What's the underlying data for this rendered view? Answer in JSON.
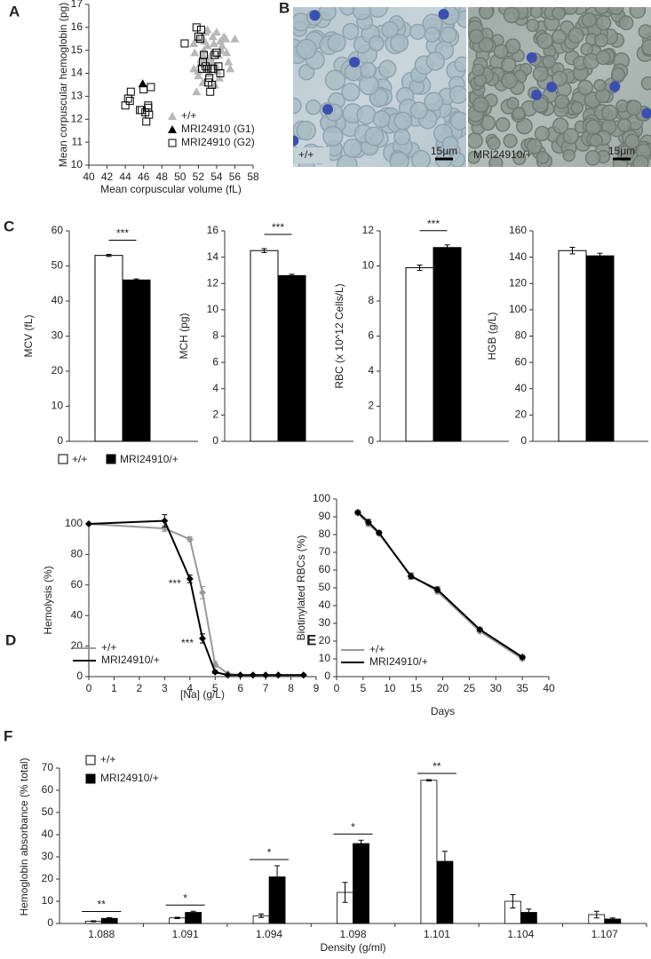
{
  "chart_data": [
    {
      "panel": "A",
      "type": "scatter",
      "xlabel": "Mean corpuscular volume (fL)",
      "ylabel": "Mean corpuscular hemoglobin (pg)",
      "xlim": [
        40,
        58
      ],
      "xticks": [
        40,
        42,
        44,
        46,
        48,
        50,
        52,
        54,
        56,
        58
      ],
      "ylim": [
        10,
        17
      ],
      "yticks": [
        10,
        11,
        12,
        13,
        14,
        15,
        16,
        17
      ],
      "legend": "lower right",
      "series": [
        {
          "name": "+/+",
          "color": "#b8b8b8",
          "marker": "triangle",
          "x": [
            51.5,
            52,
            52.5,
            53,
            53.5,
            54,
            54.5,
            55,
            55.5,
            56,
            51.8,
            52.3,
            52.8,
            53.2,
            53.7,
            54.2,
            54.8,
            55.3,
            52,
            52.6,
            53.1,
            53.6,
            54.1,
            54.6,
            55.1,
            51.6,
            52.2,
            52.7,
            53.3,
            53.8,
            54.4,
            52.5,
            53,
            53.5,
            54,
            51.5,
            52,
            52.8,
            53.4,
            54.3
          ],
          "y": [
            14.2,
            15.5,
            14.8,
            15.2,
            14.5,
            15.8,
            15,
            15.5,
            14.2,
            15.5,
            13.2,
            14.6,
            15.8,
            14,
            15.3,
            14.8,
            15.6,
            14.5,
            13.9,
            15,
            14.3,
            15.6,
            14.1,
            15.2,
            14.9,
            14.9,
            14.4,
            15.4,
            14.7,
            13.5,
            15.4,
            13.6,
            15.9,
            14.9,
            14.3,
            15.3,
            14.1,
            14.6,
            14.4,
            13.8
          ]
        },
        {
          "name": "MRI24910 (G1)",
          "color": "#000000",
          "marker": "triangle",
          "x": [
            45.9
          ],
          "y": [
            13.55
          ]
        },
        {
          "name": "MRI24910 (G2)",
          "color": "#000000",
          "marker": "open-square",
          "x": [
            44,
            44.3,
            44.6,
            45.6,
            45.8,
            46,
            46.2,
            46.3,
            46.5,
            46.6,
            46.8,
            46.5,
            44.5,
            50.5,
            51.8,
            52,
            52.2,
            52.4,
            52.6,
            52.8,
            53,
            53.1,
            53.3,
            53.5,
            53.6,
            53.8,
            54,
            54.2,
            54.4,
            52.5,
            53.2,
            52.3,
            53.4
          ],
          "y": [
            12.6,
            12.9,
            13.2,
            12.4,
            12.4,
            13.3,
            12.3,
            11.9,
            12.6,
            12.2,
            13.4,
            12.5,
            12.8,
            15.3,
            16,
            15.6,
            15.5,
            14.2,
            14.8,
            14.3,
            14.2,
            13.6,
            13.2,
            13.5,
            14.2,
            14.8,
            14.9,
            14.3,
            14,
            14.5,
            13.8,
            15.9,
            14.2
          ]
        }
      ]
    },
    {
      "panel": "C",
      "type": "bar-panels",
      "series": [
        {
          "name": "+/+",
          "color": "#ffffff"
        },
        {
          "name": "MRI24910/+",
          "color": "#000000"
        }
      ],
      "subplots": [
        {
          "ylabel": "MCV (fL)",
          "ylim": [
            0,
            60
          ],
          "yticks": [
            0,
            10,
            20,
            30,
            40,
            50,
            60
          ],
          "values": [
            53,
            46
          ],
          "errors": [
            0.3,
            0.3
          ],
          "annotation": "***"
        },
        {
          "ylabel": "MCH (pg)",
          "ylim": [
            0,
            16
          ],
          "yticks": [
            0,
            2,
            4,
            6,
            8,
            10,
            12,
            14,
            16
          ],
          "values": [
            14.5,
            12.6
          ],
          "errors": [
            0.15,
            0.1
          ],
          "annotation": "***"
        },
        {
          "ylabel": "RBC (x 10^12 Cells/L)",
          "ylim": [
            0,
            12
          ],
          "yticks": [
            0,
            2,
            4,
            6,
            8,
            10,
            12
          ],
          "values": [
            9.9,
            11.05
          ],
          "errors": [
            0.15,
            0.15
          ],
          "annotation": "***"
        },
        {
          "ylabel": "HGB (g/L)",
          "ylim": [
            0,
            160
          ],
          "yticks": [
            0,
            20,
            40,
            60,
            80,
            100,
            120,
            140,
            160
          ],
          "values": [
            145,
            141
          ],
          "errors": [
            2.5,
            2
          ]
        }
      ]
    },
    {
      "panel": "D",
      "type": "line",
      "xlabel": "[Na] (g/L)",
      "ylabel": "Hemolysis (%)",
      "xlim": [
        0,
        9
      ],
      "xticks": [
        0,
        1,
        2,
        3,
        4,
        5,
        6,
        7,
        8,
        9
      ],
      "ylim": [
        0,
        100
      ],
      "yticks": [
        0,
        20,
        40,
        60,
        80,
        100
      ],
      "legend": "lower left",
      "x": [
        0,
        3,
        4,
        4.5,
        5,
        5.5,
        6,
        6.5,
        7,
        7.5,
        8.5
      ],
      "series": [
        {
          "name": "+/+",
          "color": "#999999",
          "values": [
            100,
            97,
            90,
            55,
            8,
            2,
            1,
            1,
            1,
            1,
            1
          ],
          "errors": [
            0.5,
            2,
            1.5,
            4,
            2,
            0.5,
            0.3,
            0.3,
            0.3,
            0.3,
            0.3
          ]
        },
        {
          "name": "MRI24910/+",
          "color": "#000000",
          "values": [
            100,
            102,
            64,
            25,
            3,
            1,
            1,
            1,
            1,
            1,
            1
          ],
          "errors": [
            0.5,
            4,
            2.5,
            3,
            1,
            0.3,
            0.3,
            0.3,
            0.3,
            0.3,
            0.3
          ]
        }
      ],
      "annotations": [
        "***",
        "***"
      ]
    },
    {
      "panel": "E",
      "type": "line",
      "xlabel": "Days",
      "ylabel": "Biotinylated RBCs (%)",
      "xlim": [
        0,
        40
      ],
      "xticks": [
        0,
        5,
        10,
        15,
        20,
        25,
        30,
        35,
        40
      ],
      "ylim": [
        0,
        100
      ],
      "yticks": [
        0,
        10,
        20,
        30,
        40,
        50,
        60,
        70,
        80,
        90,
        100
      ],
      "legend": "lower left",
      "x": [
        4,
        6,
        8,
        14,
        19,
        27,
        35
      ],
      "series": [
        {
          "name": "+/+",
          "color": "#999999",
          "values": [
            92,
            86,
            80.5,
            57,
            48,
            25.5,
            10
          ],
          "errors": [
            1,
            1.5,
            1,
            1.5,
            1.5,
            1,
            1
          ]
        },
        {
          "name": "MRI24910/+",
          "color": "#000000",
          "values": [
            92.5,
            87,
            81,
            56.5,
            49,
            26.5,
            11
          ],
          "errors": [
            1,
            1.5,
            1,
            1.5,
            1.5,
            1,
            1
          ]
        }
      ]
    },
    {
      "panel": "F",
      "type": "grouped-bar",
      "xlabel": "Density (g/ml)",
      "ylabel": "Hemoglobin absorbance (% total)",
      "categories": [
        "1.088",
        "1.091",
        "1.094",
        "1.098",
        "1.101",
        "1.104",
        "1.107"
      ],
      "ylim": [
        0,
        70
      ],
      "yticks": [
        0,
        10,
        20,
        30,
        40,
        50,
        60,
        70
      ],
      "legend": "upper left",
      "series": [
        {
          "name": "+/+",
          "color": "#ffffff",
          "values": [
            1,
            2.5,
            3.5,
            14,
            64.5,
            10,
            4
          ],
          "errors": [
            0.2,
            0.3,
            0.8,
            4.5,
            0.3,
            3,
            1.5
          ]
        },
        {
          "name": "MRI24910/+",
          "color": "#000000",
          "values": [
            2.3,
            5,
            21,
            36,
            28,
            5,
            2
          ],
          "errors": [
            0.3,
            0.5,
            5,
            1.5,
            4.5,
            1.5,
            0.5
          ]
        }
      ],
      "annotations": [
        "**",
        "*",
        "*",
        "*",
        "**",
        null,
        null
      ]
    }
  ],
  "micrographs": {
    "panel": "B",
    "left_label": "+/+",
    "right_label": "MRI24910/+",
    "scale_bar": "15μm"
  }
}
